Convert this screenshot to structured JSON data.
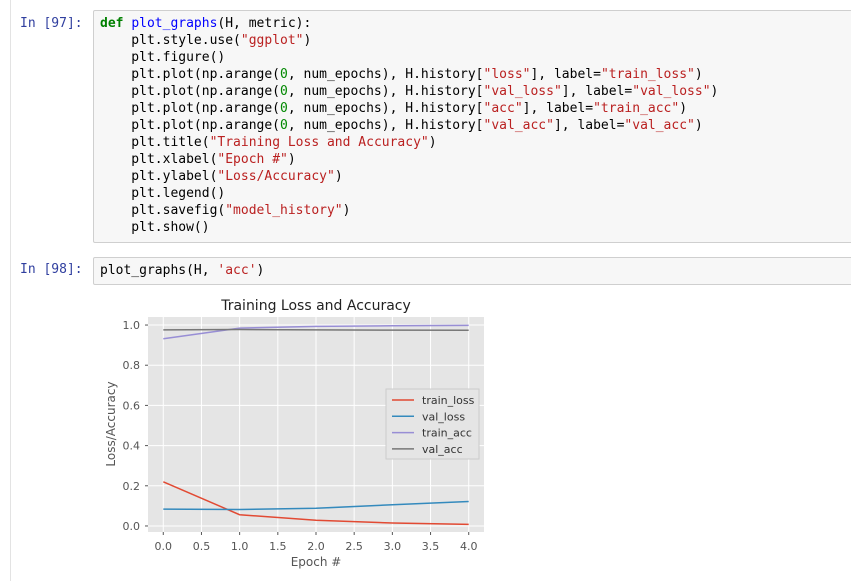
{
  "cells": [
    {
      "prompt": "In [97]:",
      "lines": [
        [
          {
            "t": "def",
            "c": "kw"
          },
          {
            "t": " "
          },
          {
            "t": "plot_graphs",
            "c": "fn"
          },
          {
            "t": "(H, metric):"
          }
        ],
        [
          {
            "t": "    plt.style.use("
          },
          {
            "t": "\"ggplot\"",
            "c": "str"
          },
          {
            "t": ")"
          }
        ],
        [
          {
            "t": "    plt.figure()"
          }
        ],
        [
          {
            "t": "    plt.plot(np.arange("
          },
          {
            "t": "0",
            "c": "num"
          },
          {
            "t": ", num_epochs), H.history["
          },
          {
            "t": "\"loss\"",
            "c": "str"
          },
          {
            "t": "], label="
          },
          {
            "t": "\"train_loss\"",
            "c": "str"
          },
          {
            "t": ")"
          }
        ],
        [
          {
            "t": "    plt.plot(np.arange("
          },
          {
            "t": "0",
            "c": "num"
          },
          {
            "t": ", num_epochs), H.history["
          },
          {
            "t": "\"val_loss\"",
            "c": "str"
          },
          {
            "t": "], label="
          },
          {
            "t": "\"val_loss\"",
            "c": "str"
          },
          {
            "t": ")"
          }
        ],
        [
          {
            "t": "    plt.plot(np.arange("
          },
          {
            "t": "0",
            "c": "num"
          },
          {
            "t": ", num_epochs), H.history["
          },
          {
            "t": "\"acc\"",
            "c": "str"
          },
          {
            "t": "], label="
          },
          {
            "t": "\"train_acc\"",
            "c": "str"
          },
          {
            "t": ")"
          }
        ],
        [
          {
            "t": "    plt.plot(np.arange("
          },
          {
            "t": "0",
            "c": "num"
          },
          {
            "t": ", num_epochs), H.history["
          },
          {
            "t": "\"val_acc\"",
            "c": "str"
          },
          {
            "t": "], label="
          },
          {
            "t": "\"val_acc\"",
            "c": "str"
          },
          {
            "t": ")"
          }
        ],
        [
          {
            "t": "    plt.title("
          },
          {
            "t": "\"Training Loss and Accuracy\"",
            "c": "str"
          },
          {
            "t": ")"
          }
        ],
        [
          {
            "t": "    plt.xlabel("
          },
          {
            "t": "\"Epoch #\"",
            "c": "str"
          },
          {
            "t": ")"
          }
        ],
        [
          {
            "t": "    plt.ylabel("
          },
          {
            "t": "\"Loss/Accuracy\"",
            "c": "str"
          },
          {
            "t": ")"
          }
        ],
        [
          {
            "t": "    plt.legend()"
          }
        ],
        [
          {
            "t": "    plt.savefig("
          },
          {
            "t": "\"model_history\"",
            "c": "str"
          },
          {
            "t": ")"
          }
        ],
        [
          {
            "t": "    plt.show()"
          }
        ]
      ]
    },
    {
      "prompt": "In [98]:",
      "lines": [
        [
          {
            "t": "plot_graphs(H, "
          },
          {
            "t": "'acc'",
            "c": "str"
          },
          {
            "t": ")"
          }
        ]
      ]
    }
  ],
  "chart_data": {
    "type": "line",
    "title": "Training Loss and Accuracy",
    "xlabel": "Epoch #",
    "ylabel": "Loss/Accuracy",
    "xlim": [
      -0.2,
      4.2
    ],
    "ylim": [
      -0.03,
      1.04
    ],
    "xticks": [
      0.0,
      0.5,
      1.0,
      1.5,
      2.0,
      2.5,
      3.0,
      3.5,
      4.0
    ],
    "xtick_labels": [
      "0.0",
      "0.5",
      "1.0",
      "1.5",
      "2.0",
      "2.5",
      "3.0",
      "3.5",
      "4.0"
    ],
    "yticks": [
      0.0,
      0.2,
      0.4,
      0.6,
      0.8,
      1.0
    ],
    "ytick_labels": [
      "0.0",
      "0.2",
      "0.4",
      "0.6",
      "0.8",
      "1.0"
    ],
    "grid": true,
    "legend_position": "center-right",
    "x": [
      0,
      1,
      2,
      3,
      4
    ],
    "series": [
      {
        "name": "train_loss",
        "color": "#E24A33",
        "values": [
          0.22,
          0.056,
          0.028,
          0.015,
          0.008
        ]
      },
      {
        "name": "val_loss",
        "color": "#348ABD",
        "values": [
          0.084,
          0.082,
          0.088,
          0.106,
          0.122
        ]
      },
      {
        "name": "train_acc",
        "color": "#988ED5",
        "values": [
          0.932,
          0.985,
          0.993,
          0.996,
          0.998
        ]
      },
      {
        "name": "val_acc",
        "color": "#777777",
        "values": [
          0.976,
          0.978,
          0.976,
          0.975,
          0.974
        ]
      }
    ]
  }
}
